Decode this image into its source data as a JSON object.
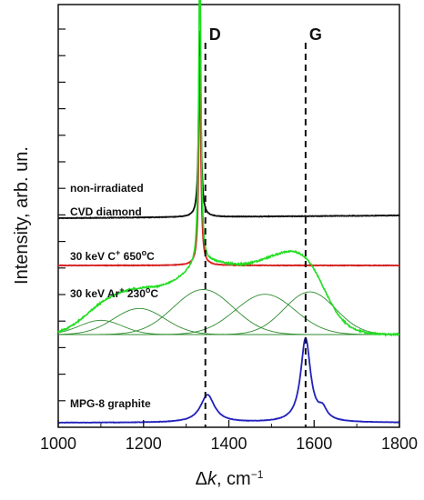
{
  "chart_data": {
    "type": "line",
    "xlabel_symbol": "Δ",
    "xlabel_var": "k",
    "xlabel_unit": ", cm",
    "xlabel_exp": "−1",
    "ylabel": "Intensity, arb. un.",
    "xlim": [
      1000,
      1800
    ],
    "xticks": [
      1000,
      1200,
      1400,
      1600,
      1800
    ],
    "grid": false,
    "vlines": [
      {
        "label": "D",
        "x": 1345
      },
      {
        "label": "G",
        "x": 1580
      }
    ],
    "annotations": {
      "cvd_line1": "non-irradiated",
      "cvd_line2": "CVD diamond",
      "carbon_prefix": "30 keV C",
      "carbon_sup": "+",
      "carbon_temp": " 650",
      "carbon_deg": "o",
      "carbon_unit": "C",
      "argon_prefix": "30 keV Ar",
      "argon_sup": "+",
      "argon_temp": " 230",
      "argon_deg": "o",
      "argon_unit": "C",
      "graphite": "MPG-8 graphite"
    },
    "series": [
      {
        "color": "#111111",
        "baseline": 0.0,
        "note": "non-irradiated CVD diamond",
        "peaks": [
          {
            "x": 1332,
            "height": 1.0,
            "width": 3
          }
        ],
        "slope": 0.0
      },
      {
        "color": "#d62020",
        "baseline": 0.0,
        "note": "30 keV C+ 650C",
        "peaks": [
          {
            "x": 1332,
            "height": 1.0,
            "width": 3
          }
        ],
        "slope": 0.0
      },
      {
        "color": "#22dd22",
        "baseline": 0.0,
        "note": "30 keV Ar+ 230C",
        "peaks": [
          {
            "x": 1332,
            "height": 1.0,
            "width": 3
          },
          {
            "x": 1100,
            "height": 0.06,
            "width": 50
          },
          {
            "x": 1190,
            "height": 0.11,
            "width": 60
          },
          {
            "x": 1340,
            "height": 0.19,
            "width": 70
          },
          {
            "x": 1485,
            "height": 0.17,
            "width": 70
          },
          {
            "x": 1590,
            "height": 0.18,
            "width": 60
          }
        ],
        "slope": 0.0
      },
      {
        "color": "#2222bb",
        "baseline": 0.0,
        "note": "MPG-8 graphite",
        "peaks": [
          {
            "x": 1350,
            "height": 0.33,
            "width": 20
          },
          {
            "x": 1580,
            "height": 1.0,
            "width": 14
          },
          {
            "x": 1620,
            "height": 0.12,
            "width": 12
          }
        ],
        "slope": 0.0
      }
    ]
  }
}
